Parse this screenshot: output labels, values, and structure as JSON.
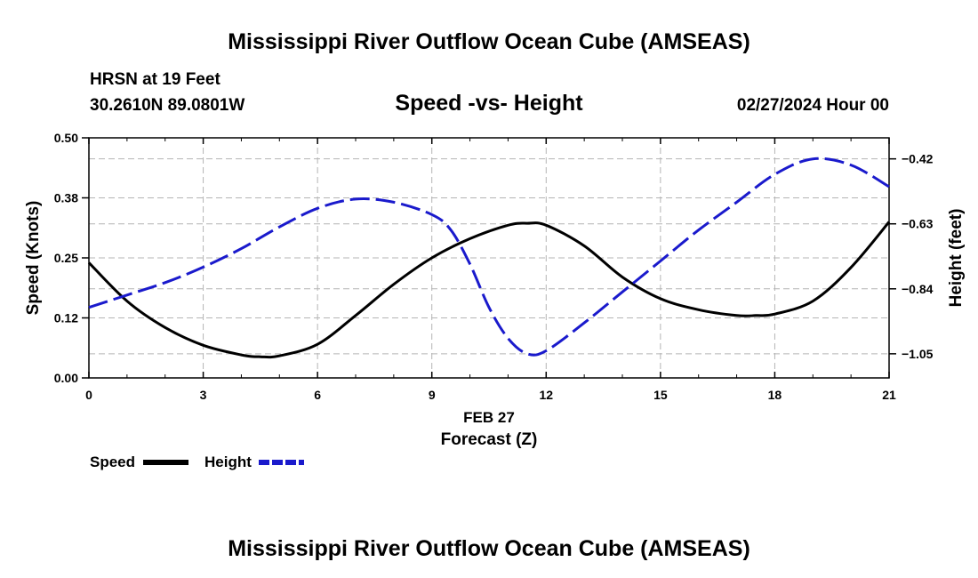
{
  "header": {
    "title": "Mississippi River Outflow Ocean Cube (AMSEAS)",
    "station": "HRSN at 19 Feet",
    "coords": "30.2610N  89.0801W",
    "subtitle": "Speed -vs- Height",
    "date": "02/27/2024 Hour 00"
  },
  "footer": {
    "title": "Mississippi River Outflow Ocean Cube (AMSEAS)"
  },
  "chart_data": {
    "type": "line",
    "title": "Speed -vs- Height",
    "xlabel_date": "FEB 27",
    "xlabel": "Forecast (Z)",
    "ylabel": "Speed (Knots)",
    "y2label": "Height (feet)",
    "xlim": [
      0,
      21
    ],
    "ylim": [
      0,
      0.5
    ],
    "y2lim": [
      -1.128,
      -0.352
    ],
    "x_ticks": [
      0,
      3,
      6,
      9,
      12,
      15,
      18,
      21
    ],
    "x_tick_labels": [
      "0",
      "3",
      "6",
      "9",
      "12",
      "15",
      "18",
      "21"
    ],
    "y_ticks": [
      0.0,
      0.125,
      0.25,
      0.375,
      0.5
    ],
    "y_tick_labels": [
      "0.00",
      "0.12",
      "0.25",
      "0.38",
      "0.50"
    ],
    "y2_ticks": [
      -1.05,
      -0.84,
      -0.63,
      -0.42
    ],
    "y2_tick_labels": [
      "−1.05",
      "−0.84",
      "−0.63",
      "−0.42"
    ],
    "grid": true,
    "series": [
      {
        "name": "Speed",
        "axis": "left",
        "color": "#000000",
        "style": "solid",
        "x": [
          0,
          1,
          2,
          3,
          4,
          4.5,
          5,
          6,
          7,
          8,
          9,
          10,
          11,
          11.5,
          12,
          13,
          14,
          15,
          16,
          17,
          17.5,
          18,
          19,
          20,
          21
        ],
        "values": [
          0.24,
          0.16,
          0.105,
          0.068,
          0.048,
          0.044,
          0.046,
          0.07,
          0.13,
          0.195,
          0.25,
          0.29,
          0.318,
          0.322,
          0.318,
          0.275,
          0.21,
          0.165,
          0.142,
          0.13,
          0.13,
          0.133,
          0.16,
          0.23,
          0.325
        ]
      },
      {
        "name": "Height",
        "axis": "right",
        "color": "#1a1acc",
        "style": "dashed",
        "x": [
          0,
          1,
          2,
          3,
          4,
          5,
          6,
          7,
          8,
          9,
          9.5,
          10,
          10.5,
          11,
          11.5,
          12,
          13,
          14,
          15,
          16,
          17,
          18,
          19,
          20,
          21
        ],
        "values": [
          -0.9,
          -0.86,
          -0.82,
          -0.77,
          -0.71,
          -0.64,
          -0.58,
          -0.55,
          -0.56,
          -0.6,
          -0.65,
          -0.76,
          -0.9,
          -1.0,
          -1.05,
          -1.04,
          -0.95,
          -0.85,
          -0.75,
          -0.65,
          -0.56,
          -0.47,
          -0.42,
          -0.44,
          -0.51
        ]
      }
    ]
  },
  "legend": {
    "speed_label": "Speed",
    "height_label": "Height"
  }
}
